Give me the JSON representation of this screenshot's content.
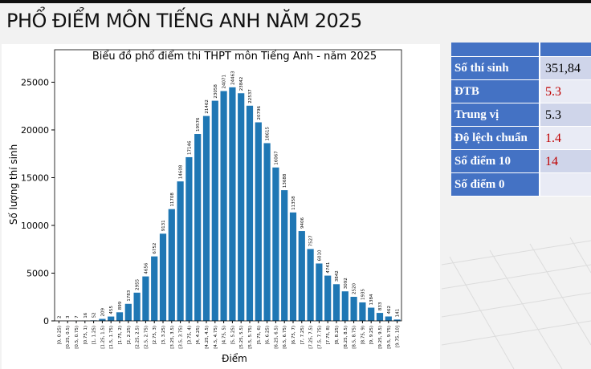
{
  "title": "PHỔ ĐIỂM MÔN TIẾNG ANH NĂM 2025",
  "chart_data": {
    "type": "bar",
    "title": "Biểu đồ phổ điểm thi THPT môn Tiếng Anh - năm 2025",
    "x_label": "Điểm",
    "y_label": "Số lượng thí sinh",
    "categories": [
      "[0, 0.25)",
      "[0.25, 0.5)",
      "[0.5, 0.75)",
      "[0.75, 1)",
      "[1, 1.25)",
      "[1.25, 1.5)",
      "[1.5, 1.75)",
      "[1.75, 2)",
      "[2, 2.25)",
      "[2.25, 2.5)",
      "[2.5, 2.75)",
      "[2.75, 3)",
      "[3, 3.25)",
      "[3.25, 3.5)",
      "[3.5, 3.75)",
      "[3.75, 4)",
      "[4, 4.25)",
      "[4.25, 4.5)",
      "[4.5, 4.75)",
      "[4.75, 5)",
      "[5, 5.25)",
      "[5.25, 5.5)",
      "[5.5, 5.75)",
      "[5.75, 6)",
      "[6, 6.25)",
      "[6.25, 6.5)",
      "[6.5, 6.75)",
      "[6.75, 7)",
      "[7, 7.25)",
      "[7.25, 7.5)",
      "[7.5, 7.75)",
      "[7.75, 8)",
      "[8, 8.25)",
      "[8.25, 8.5)",
      "[8.5, 8.75)",
      "[8.75, 9)",
      "[9, 9.25)",
      "[9.25, 9.5)",
      "[9.5, 9.75)",
      "[9.75, 10]"
    ],
    "values": [
      2,
      3,
      7,
      16,
      52,
      209,
      455,
      899,
      1783,
      2955,
      4656,
      6752,
      9131,
      11708,
      14608,
      17146,
      19576,
      21462,
      23058,
      24071,
      24463,
      23842,
      22537,
      20796,
      18615,
      16067,
      13688,
      11358,
      9406,
      7527,
      6010,
      4741,
      3842,
      3092,
      2520,
      1935,
      1384,
      833,
      462,
      141
    ],
    "color": "#1f77b4",
    "ylim": [
      0,
      28400
    ],
    "yticks": [
      0,
      5000,
      10000,
      15000,
      20000,
      25000
    ]
  },
  "table": {
    "rows": [
      [
        "Số thí sinh",
        "351,84"
      ],
      [
        "ĐTB",
        "5.3"
      ],
      [
        "Trung vị",
        "5.3"
      ],
      [
        "Độ lệch chuẩn",
        "1.4"
      ],
      [
        "Số điểm 10",
        "14"
      ],
      [
        "Số điểm 0",
        ""
      ]
    ]
  }
}
